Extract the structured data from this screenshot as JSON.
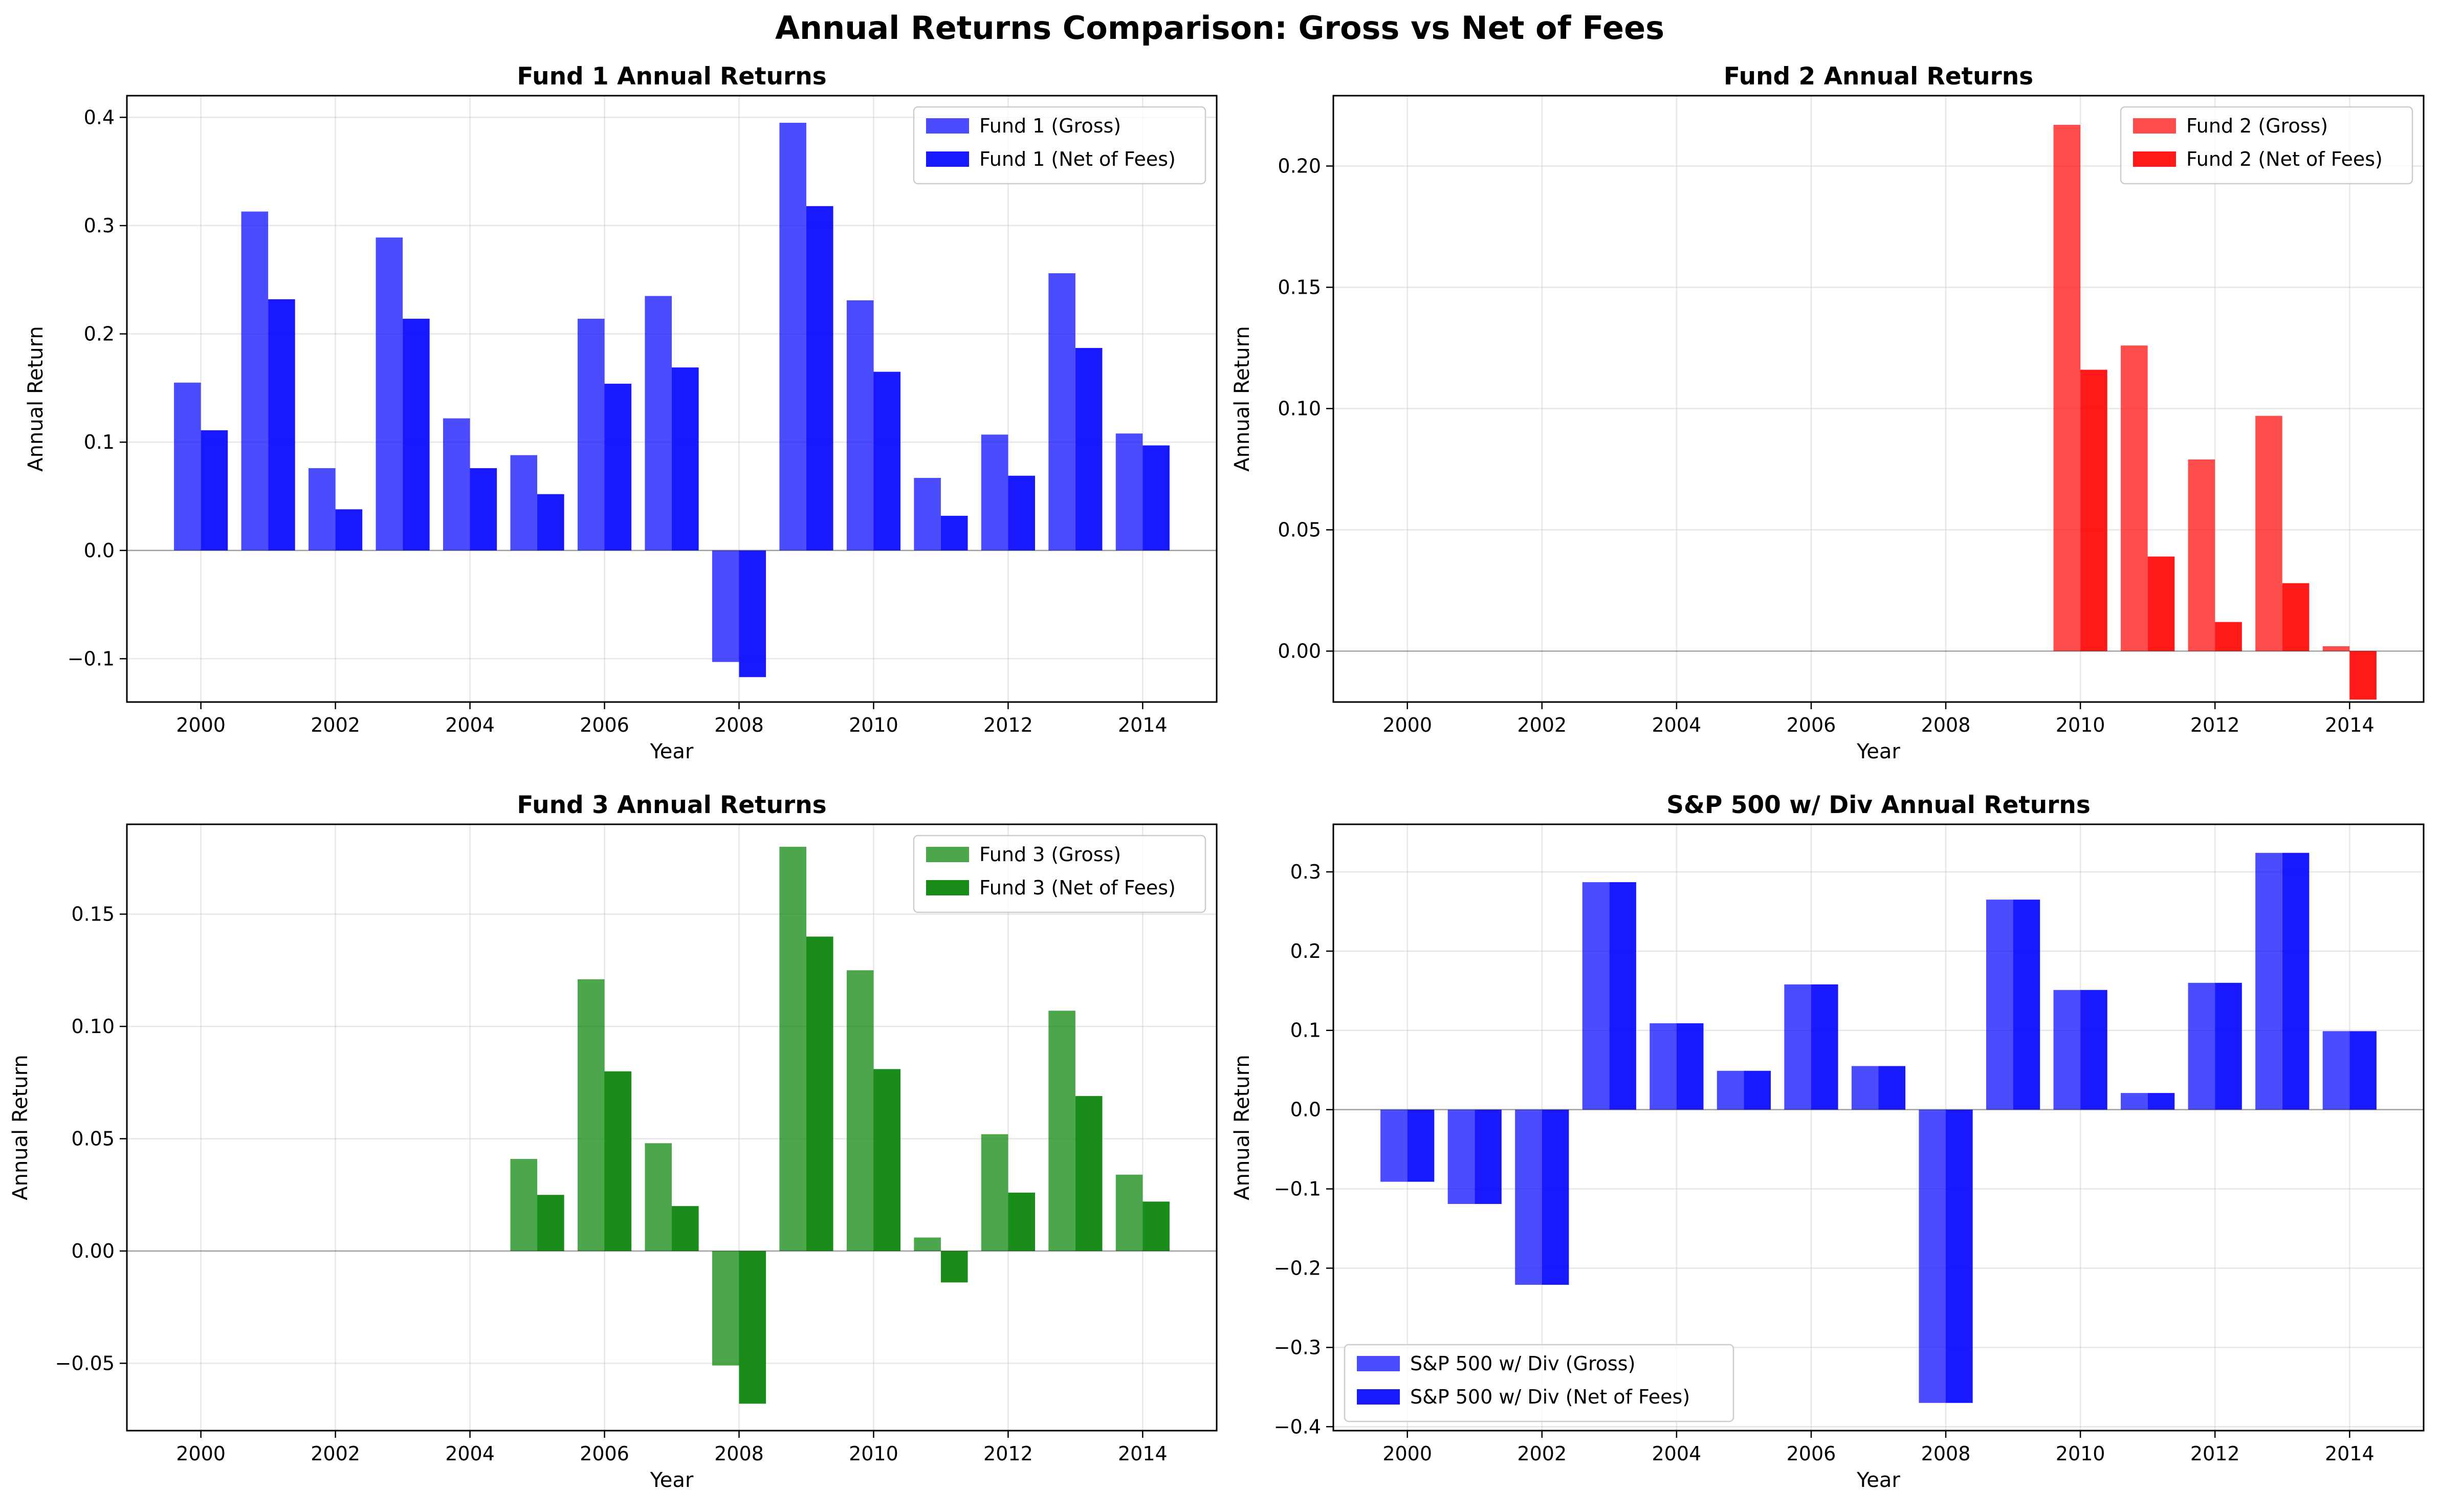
{
  "title": "Annual Returns Comparison: Gross vs Net of Fees",
  "colors": {
    "Fund 1": "#0000ff",
    "Fund 2": "#ff0000",
    "Fund 3": "#008000",
    "S&P 500 w/ Div": "#0000ff"
  },
  "chart_data": [
    {
      "type": "bar",
      "title": "Fund 1 Annual Returns",
      "xlabel": "Year",
      "ylabel": "Annual Return",
      "x": [
        2000,
        2001,
        2002,
        2003,
        2004,
        2005,
        2006,
        2007,
        2008,
        2009,
        2010,
        2011,
        2012,
        2013,
        2014
      ],
      "xticks": [
        2000,
        2002,
        2004,
        2006,
        2008,
        2010,
        2012,
        2014
      ],
      "xlim": [
        1998.9,
        2015.1
      ],
      "ylim": [
        -0.14,
        0.42
      ],
      "yticks": [
        -0.1,
        0.0,
        0.1,
        0.2,
        0.3,
        0.4
      ],
      "ytick_labels": [
        "−0.1",
        "0.0",
        "0.1",
        "0.2",
        "0.3",
        "0.4"
      ],
      "grid": true,
      "legend": "upper right",
      "series": [
        {
          "name": "Fund 1 (Gross)",
          "color": "#0000ff",
          "opacity": 0.7,
          "values": [
            0.155,
            0.313,
            0.076,
            0.289,
            0.122,
            0.088,
            0.214,
            0.235,
            -0.103,
            0.395,
            0.231,
            0.067,
            0.107,
            0.256,
            0.108
          ]
        },
        {
          "name": "Fund 1 (Net of Fees)",
          "color": "#0000ff",
          "opacity": 0.9,
          "values": [
            0.111,
            0.232,
            0.038,
            0.214,
            0.076,
            0.052,
            0.154,
            0.169,
            -0.117,
            0.318,
            0.165,
            0.032,
            0.069,
            0.187,
            0.097
          ]
        }
      ]
    },
    {
      "type": "bar",
      "title": "Fund 2 Annual Returns",
      "xlabel": "Year",
      "ylabel": "Annual Return",
      "x": [
        2010,
        2011,
        2012,
        2013,
        2014
      ],
      "xticks": [
        2000,
        2002,
        2004,
        2006,
        2008,
        2010,
        2012,
        2014
      ],
      "xlim": [
        1998.9,
        2015.1
      ],
      "ylim": [
        -0.021,
        0.229
      ],
      "yticks": [
        0.0,
        0.05,
        0.1,
        0.15,
        0.2
      ],
      "ytick_labels": [
        "0.00",
        "0.05",
        "0.10",
        "0.15",
        "0.20"
      ],
      "grid": true,
      "legend": "upper right",
      "series": [
        {
          "name": "Fund 2 (Gross)",
          "color": "#ff0000",
          "opacity": 0.7,
          "values": [
            0.217,
            0.126,
            0.079,
            0.097,
            0.002
          ]
        },
        {
          "name": "Fund 2 (Net of Fees)",
          "color": "#ff0000",
          "opacity": 0.9,
          "values": [
            0.116,
            0.039,
            0.012,
            0.028,
            -0.02
          ]
        }
      ]
    },
    {
      "type": "bar",
      "title": "Fund 3 Annual Returns",
      "xlabel": "Year",
      "ylabel": "Annual Return",
      "x": [
        2005,
        2006,
        2007,
        2008,
        2009,
        2010,
        2011,
        2012,
        2013,
        2014
      ],
      "xticks": [
        2000,
        2002,
        2004,
        2006,
        2008,
        2010,
        2012,
        2014
      ],
      "xlim": [
        1998.9,
        2015.1
      ],
      "ylim": [
        -0.08,
        0.19
      ],
      "yticks": [
        -0.05,
        0.0,
        0.05,
        0.1,
        0.15
      ],
      "ytick_labels": [
        "−0.05",
        "0.00",
        "0.05",
        "0.10",
        "0.15"
      ],
      "grid": true,
      "legend": "upper right",
      "series": [
        {
          "name": "Fund 3 (Gross)",
          "color": "#008000",
          "opacity": 0.7,
          "values": [
            0.041,
            0.121,
            0.048,
            -0.051,
            0.18,
            0.125,
            0.006,
            0.052,
            0.107,
            0.034
          ]
        },
        {
          "name": "Fund 3 (Net of Fees)",
          "color": "#008000",
          "opacity": 0.9,
          "values": [
            0.025,
            0.08,
            0.02,
            -0.068,
            0.14,
            0.081,
            -0.014,
            0.026,
            0.069,
            0.022
          ]
        }
      ]
    },
    {
      "type": "bar",
      "title": "S&P 500 w/ Div Annual Returns",
      "xlabel": "Year",
      "ylabel": "Annual Return",
      "x": [
        2000,
        2001,
        2002,
        2003,
        2004,
        2005,
        2006,
        2007,
        2008,
        2009,
        2010,
        2011,
        2012,
        2013,
        2014
      ],
      "xticks": [
        2000,
        2002,
        2004,
        2006,
        2008,
        2010,
        2012,
        2014
      ],
      "xlim": [
        1998.9,
        2015.1
      ],
      "ylim": [
        -0.405,
        0.36
      ],
      "yticks": [
        -0.4,
        -0.3,
        -0.2,
        -0.1,
        0.0,
        0.1,
        0.2,
        0.3
      ],
      "ytick_labels": [
        "−0.4",
        "−0.3",
        "−0.2",
        "−0.1",
        "0.0",
        "0.1",
        "0.2",
        "0.3"
      ],
      "grid": true,
      "legend": "lower left",
      "series": [
        {
          "name": "S&P 500 w/ Div (Gross)",
          "color": "#0000ff",
          "opacity": 0.7,
          "values": [
            -0.091,
            -0.119,
            -0.221,
            0.287,
            0.109,
            0.049,
            0.158,
            0.055,
            -0.37,
            0.265,
            0.151,
            0.021,
            0.16,
            0.324,
            0.099
          ]
        },
        {
          "name": "S&P 500 w/ Div (Net of Fees)",
          "color": "#0000ff",
          "opacity": 0.9,
          "values": [
            -0.091,
            -0.119,
            -0.221,
            0.287,
            0.109,
            0.049,
            0.158,
            0.055,
            -0.37,
            0.265,
            0.151,
            0.021,
            0.16,
            0.324,
            0.099
          ]
        }
      ]
    }
  ]
}
